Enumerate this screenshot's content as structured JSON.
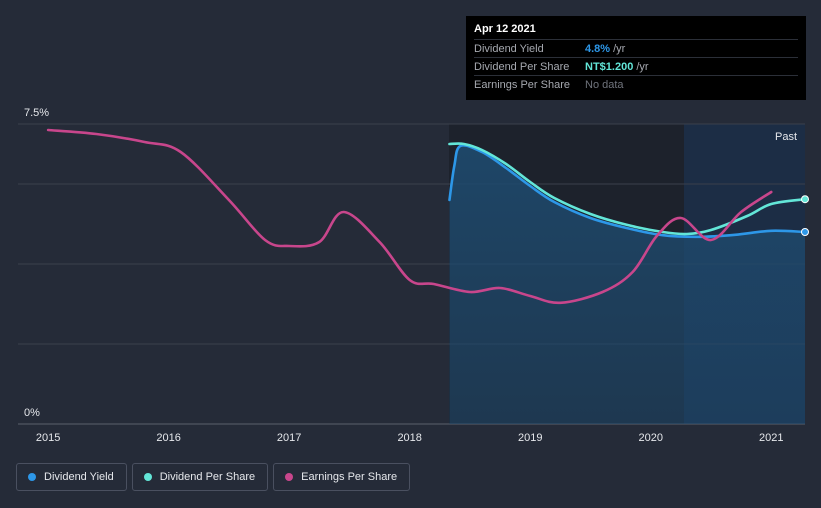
{
  "tooltip": {
    "date": "Apr 12 2021",
    "rows": [
      {
        "label": "Dividend Yield",
        "value": "4.8%",
        "unit": "/yr",
        "color": "#2d97e8"
      },
      {
        "label": "Dividend Per Share",
        "value": "NT$1.200",
        "unit": "/yr",
        "color": "#63e6d8"
      },
      {
        "label": "Earnings Per Share",
        "value": "No data",
        "unit": "",
        "color": "#70747d"
      }
    ]
  },
  "legend": [
    {
      "label": "Dividend Yield",
      "color": "#2d97e8"
    },
    {
      "label": "Dividend Per Share",
      "color": "#63e6d8"
    },
    {
      "label": "Earnings Per Share",
      "color": "#c8468c"
    }
  ],
  "chart_data": {
    "type": "line",
    "title": "",
    "xlabel": "",
    "ylabel": "",
    "ylim": [
      0,
      7.5
    ],
    "xlim": [
      2014.75,
      2021.28
    ],
    "y_tick_labels": [
      "7.5%",
      "0%"
    ],
    "x_ticks": [
      2015,
      2016,
      2017,
      2018,
      2019,
      2020,
      2021
    ],
    "x_tick_labels": [
      "2015",
      "2016",
      "2017",
      "2018",
      "2019",
      "2020",
      "2021"
    ],
    "past_label": "Past",
    "past_region_start": 2020.28,
    "series": [
      {
        "name": "Dividend Yield",
        "color": "#2d97e8",
        "fill": true,
        "x": [
          2018.33,
          2018.37,
          2018.42,
          2018.6,
          2018.8,
          2019.0,
          2019.2,
          2019.5,
          2019.8,
          2020.1,
          2020.4,
          2020.7,
          2021.0,
          2021.28
        ],
        "values": [
          5.6,
          6.45,
          6.95,
          6.8,
          6.4,
          5.95,
          5.55,
          5.15,
          4.9,
          4.72,
          4.68,
          4.73,
          4.83,
          4.8
        ]
      },
      {
        "name": "Dividend Per Share",
        "color": "#63e6d8",
        "fill": false,
        "x": [
          2018.33,
          2018.45,
          2018.6,
          2018.8,
          2019.0,
          2019.2,
          2019.5,
          2019.8,
          2020.1,
          2020.3,
          2020.5,
          2020.8,
          2021.0,
          2021.28
        ],
        "values": [
          7.0,
          7.0,
          6.85,
          6.5,
          6.05,
          5.65,
          5.25,
          4.98,
          4.8,
          4.75,
          4.85,
          5.2,
          5.5,
          5.62
        ]
      },
      {
        "name": "Earnings Per Share",
        "color": "#c8468c",
        "fill": false,
        "x": [
          2015.0,
          2015.4,
          2015.8,
          2016.1,
          2016.5,
          2016.8,
          2017.0,
          2017.25,
          2017.45,
          2017.75,
          2018.0,
          2018.2,
          2018.5,
          2018.75,
          2019.0,
          2019.25,
          2019.6,
          2019.85,
          2020.05,
          2020.25,
          2020.5,
          2020.75,
          2021.0
        ],
        "values": [
          7.35,
          7.25,
          7.05,
          6.8,
          5.6,
          4.6,
          4.45,
          4.55,
          5.3,
          4.55,
          3.6,
          3.5,
          3.3,
          3.4,
          3.2,
          3.03,
          3.3,
          3.8,
          4.7,
          5.15,
          4.6,
          5.3,
          5.8
        ]
      }
    ]
  }
}
